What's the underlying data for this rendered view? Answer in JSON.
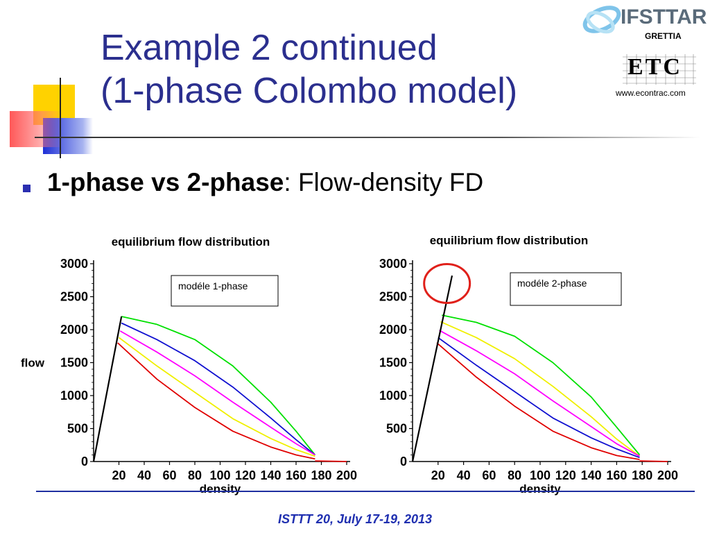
{
  "slide": {
    "title_line1": "Example 2 continued",
    "title_line2": "(1-phase Colombo model)",
    "bullet_bold": "1-phase vs 2-phase",
    "bullet_rest": ": Flow-density FD",
    "footer": "ISTTT 20, July 17-19, 2013"
  },
  "logos": {
    "ifsttar": "IFSTTAR",
    "grettia": "GRETTIA",
    "etc": "ETC",
    "url": "www.econtrac.com"
  },
  "colors": {
    "title": "#2b2f8e",
    "bullet": "#2b2fb0",
    "footer": "#1f2fb0",
    "highlight_circle": "#e0201a"
  },
  "chart_data": [
    {
      "type": "line",
      "title": "equilibrium flow distribution",
      "xlabel": "density",
      "ylabel": "flow",
      "xlim": [
        0,
        200
      ],
      "ylim": [
        0,
        3000
      ],
      "xticks": [
        20,
        40,
        60,
        80,
        100,
        120,
        140,
        160,
        180,
        200
      ],
      "xtick_labels": [
        "20",
        "40",
        "60",
        "80",
        "100",
        "120",
        "140",
        "160",
        "180",
        "200"
      ],
      "yticks": [
        0,
        500,
        1000,
        1500,
        2000,
        2500,
        3000
      ],
      "ytick_labels": [
        "0",
        "500",
        "1000",
        "1500",
        "2000",
        "2500",
        "3000"
      ],
      "legend": "modéle  1-phase",
      "free_flow_line": {
        "color": "#000000",
        "x": [
          0,
          22
        ],
        "y": [
          0,
          2200
        ]
      },
      "series": [
        {
          "color": "#00e000",
          "x": [
            22,
            50,
            80,
            110,
            140,
            160,
            175
          ],
          "y": [
            2200,
            2080,
            1850,
            1450,
            900,
            460,
            100
          ]
        },
        {
          "color": "#1010d0",
          "x": [
            22,
            50,
            80,
            110,
            140,
            160,
            175
          ],
          "y": [
            2100,
            1850,
            1530,
            1130,
            660,
            330,
            100
          ]
        },
        {
          "color": "#ff00ff",
          "x": [
            21,
            50,
            80,
            110,
            140,
            160,
            175
          ],
          "y": [
            1980,
            1660,
            1300,
            900,
            520,
            270,
            100
          ]
        },
        {
          "color": "#f0f000",
          "x": [
            20,
            50,
            80,
            110,
            140,
            160,
            175
          ],
          "y": [
            1880,
            1450,
            1050,
            650,
            350,
            180,
            80
          ]
        },
        {
          "color": "#e00000",
          "x": [
            19,
            50,
            80,
            110,
            140,
            160,
            175
          ],
          "y": [
            1800,
            1250,
            820,
            460,
            220,
            100,
            40
          ]
        }
      ],
      "tail": {
        "color": "#e00000",
        "x": [
          175,
          200
        ],
        "y": [
          10,
          0
        ]
      }
    },
    {
      "type": "line",
      "title": "equilibrium flow distribution",
      "xlabel": "density",
      "ylabel": "",
      "xlim": [
        0,
        200
      ],
      "ylim": [
        0,
        3000
      ],
      "xticks": [
        20,
        40,
        60,
        80,
        100,
        120,
        140,
        160,
        180,
        200
      ],
      "xtick_labels": [
        "20",
        "40",
        "60",
        "80",
        "100",
        "120",
        "140",
        "160",
        "180",
        "200"
      ],
      "yticks": [
        0,
        500,
        1000,
        1500,
        2000,
        2500,
        3000
      ],
      "ytick_labels": [
        "0",
        "500",
        "1000",
        "1500",
        "2000",
        "2500",
        "3000"
      ],
      "legend": "modéle 2-phase",
      "free_flow_line": {
        "color": "#000000",
        "x": [
          0,
          31
        ],
        "y": [
          0,
          2820
        ]
      },
      "series": [
        {
          "color": "#00e000",
          "x": [
            23,
            50,
            80,
            110,
            140,
            160,
            178
          ],
          "y": [
            2220,
            2110,
            1900,
            1500,
            980,
            520,
            100
          ]
        },
        {
          "color": "#f0f000",
          "x": [
            22,
            50,
            80,
            110,
            140,
            160,
            178
          ],
          "y": [
            2120,
            1880,
            1560,
            1140,
            680,
            340,
            80
          ]
        },
        {
          "color": "#ff00ff",
          "x": [
            21,
            50,
            80,
            110,
            140,
            160,
            178
          ],
          "y": [
            1990,
            1680,
            1330,
            920,
            530,
            270,
            80
          ]
        },
        {
          "color": "#1010d0",
          "x": [
            20,
            50,
            80,
            110,
            140,
            160,
            178
          ],
          "y": [
            1880,
            1460,
            1060,
            660,
            360,
            190,
            60
          ]
        },
        {
          "color": "#e00000",
          "x": [
            19,
            50,
            80,
            110,
            140,
            160,
            178
          ],
          "y": [
            1800,
            1280,
            840,
            460,
            210,
            90,
            30
          ]
        }
      ],
      "tail": {
        "color": "#e00000",
        "x": [
          178,
          200
        ],
        "y": [
          10,
          0
        ]
      },
      "highlight": {
        "shape": "circle",
        "cx": 27,
        "cy": 2700,
        "color": "#e0201a"
      }
    }
  ]
}
